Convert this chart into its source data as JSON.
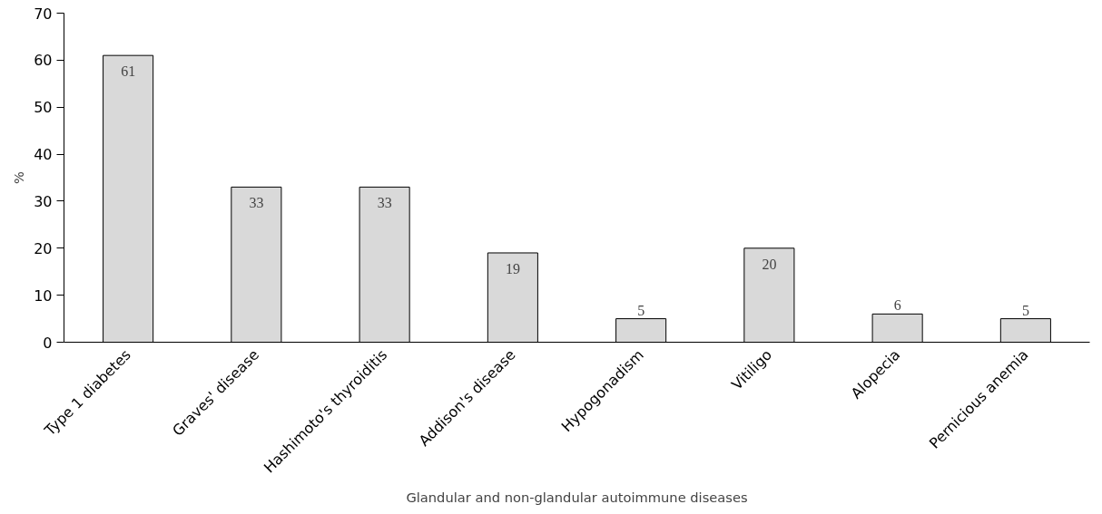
{
  "chart_data": {
    "type": "bar",
    "xlabel": "Glandular and non-glandular autoimmune diseases",
    "ylabel": "%",
    "categories": [
      "Type 1 diabetes",
      "Graves' disease",
      "Hashimoto's thyroiditis",
      "Addison's disease",
      "Hypogonadism",
      "Vitiligo",
      "Alopecia",
      "Pernicious anemia"
    ],
    "values": [
      61,
      33,
      33,
      19,
      5,
      20,
      6,
      5
    ],
    "color": "#d9d9d9",
    "ylim": [
      0,
      70
    ],
    "yticks": [
      0,
      10,
      20,
      30,
      40,
      50,
      60,
      70
    ],
    "data_labels": true,
    "grid": false
  }
}
